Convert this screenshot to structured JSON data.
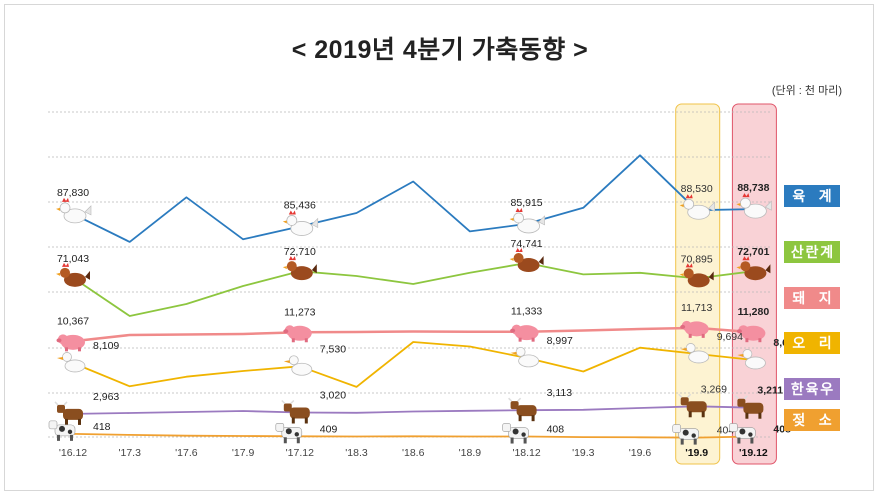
{
  "title": "< 2019년 4분기 가축동향 >",
  "unit": "(단위 : 천 마리)",
  "colors": {
    "chicken": "#2b7bbf",
    "layer": "#8dc63f",
    "pig": "#f08a8a",
    "duck": "#f0b400",
    "hanwoo": "#9b7ac0",
    "dairy": "#f0a030",
    "highlight_q3": "#fdf3d2",
    "highlight_q4": "#f9d2d6"
  },
  "chart_data": {
    "type": "line",
    "categories": [
      "'16.12",
      "'17.3",
      "'17.6",
      "'17.9",
      "'17.12",
      "'18.3",
      "'18.6",
      "'18.9",
      "'18.12",
      "'19.3",
      "'19.6",
      "'19.9",
      "'19.12"
    ],
    "highlighted_categories": [
      "'19.9",
      "'19.12"
    ],
    "series": [
      {
        "key": "chicken",
        "name": "육 계",
        "icon": "chicken-icon",
        "values": [
          87830,
          82500,
          91000,
          83000,
          85436,
          88000,
          94000,
          84500,
          85915,
          89000,
          99000,
          88530,
          88738
        ],
        "labels": {
          "0": "87,830",
          "4": "85,436",
          "8": "85,915",
          "11": "88,530",
          "12": "88,738"
        }
      },
      {
        "key": "layer",
        "name": "산란계",
        "icon": "hen-icon",
        "values": [
          71043,
          61500,
          64500,
          69000,
          72710,
          71500,
          69500,
          72300,
          74741,
          71900,
          72300,
          70895,
          72701
        ],
        "labels": {
          "0": "71,043",
          "4": "72,710",
          "8": "74,741",
          "11": "70,895",
          "12": "72,701"
        }
      },
      {
        "key": "pig",
        "name": "돼 지",
        "icon": "pig-icon",
        "values": [
          10367,
          11000,
          11050,
          11100,
          11273,
          11300,
          11350,
          11320,
          11333,
          11450,
          11600,
          11713,
          11280
        ],
        "labels": {
          "0": "10,367",
          "4": "11,273",
          "8": "11,333",
          "11": "11,713",
          "12": "11,280"
        }
      },
      {
        "key": "duck",
        "name": "오 리",
        "icon": "duck-icon",
        "values": [
          8109,
          4000,
          5700,
          6700,
          7530,
          3900,
          11800,
          11000,
          8997,
          6600,
          10800,
          9694,
          8637
        ],
        "labels": {
          "0": "8,109",
          "4": "7,530",
          "8": "8,997",
          "11": "9,694",
          "12": "8,637"
        }
      },
      {
        "key": "hanwoo",
        "name": "한육우",
        "icon": "cow-icon",
        "values": [
          2963,
          3000,
          3040,
          3080,
          3020,
          3010,
          3060,
          3090,
          3113,
          3130,
          3200,
          3269,
          3211
        ],
        "labels": {
          "0": "2,963",
          "4": "3,020",
          "8": "3,113",
          "11": "3,269",
          "12": "3,211"
        }
      },
      {
        "key": "dairy",
        "name": "젖 소",
        "icon": "dairy-cow-icon",
        "values": [
          418,
          414,
          411,
          410,
          409,
          408,
          409,
          408,
          408,
          406,
          405,
          404,
          408
        ],
        "labels": {
          "0": "418",
          "4": "409",
          "8": "408",
          "11": "404",
          "12": "408"
        }
      }
    ]
  }
}
